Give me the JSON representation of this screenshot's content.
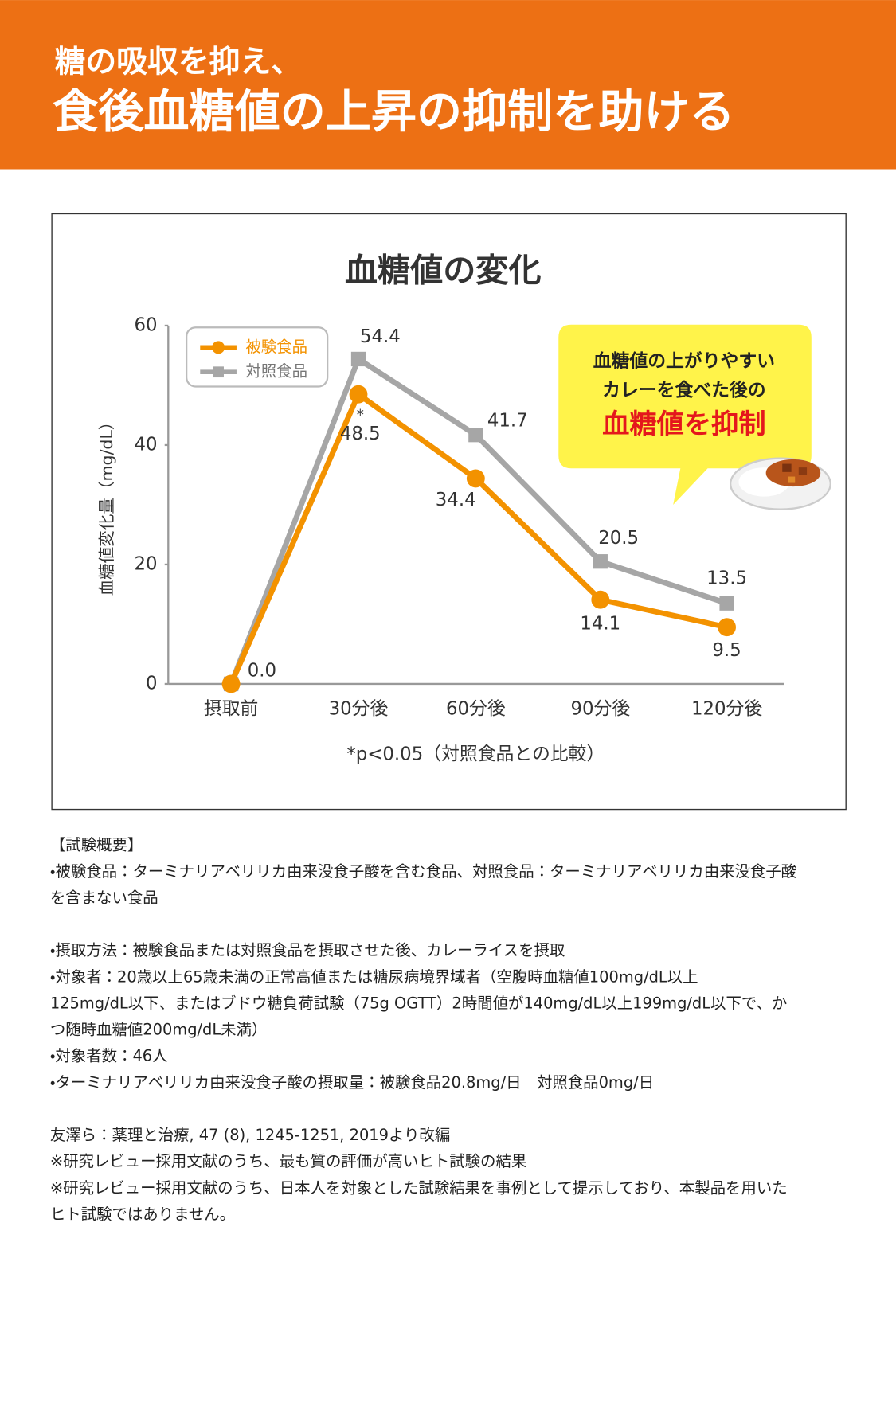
{
  "header": {
    "line1": "糖の吸収を抑え、",
    "line2": "食後血糖値の上昇の抑制を助ける"
  },
  "chart_data": {
    "type": "line",
    "title": "血糖値の変化",
    "y_label": "血糖値変化量（mg/dL）",
    "categories": [
      "摂取前",
      "30分後",
      "60分後",
      "90分後",
      "120分後"
    ],
    "series": [
      {
        "name": "被験食品",
        "color": "#f39200",
        "values": [
          0.0,
          48.5,
          34.4,
          14.1,
          9.5
        ],
        "value_labels": [
          "0.0",
          "48.5",
          "34.4",
          "14.1",
          "9.5"
        ]
      },
      {
        "name": "対照食品",
        "color": "#a6a6a6",
        "values": [
          0,
          54.4,
          41.7,
          20.5,
          13.5
        ],
        "value_labels": [
          null,
          "54.4",
          "41.7",
          "20.5",
          "13.5"
        ]
      }
    ],
    "ylim": [
      0,
      60
    ],
    "yticks": [
      0,
      20,
      40,
      60
    ],
    "grid": false,
    "significance_mark": "*",
    "footnote": "*p<0.05（対照食品との比較）",
    "callout": [
      "血糖値の上がりやすい",
      "カレーを食べた後の",
      "血糖値を抑制"
    ]
  },
  "notes": {
    "heading": "【試験概要】",
    "sections": [
      [
        "・被験食品：ターミナリアベリリカ由来没食子酸を含む食品、対照食品：ターミナリアベリリカ由来没食子酸",
        "を含まない食品"
      ],
      [
        "・摂取方法：被験食品または対照食品を摂取させた後、カレーライスを摂取",
        "・対象者：20歳以上65歳未満の正常高値または糖尿病境界域者（空腹時血糖値100mg/dL以上",
        "125mg/dL以下、またはブドウ糖負荷試験（75g OGTT）2時間値が140mg/dL以上199mg/dL以下で、か",
        "つ随時血糖値200mg/dL未満）",
        "・対象者数：46人",
        "・ターミナリアベリリカ由来没食子酸の摂取量：被験食品20.8mg/日　対照食品0mg/日"
      ],
      [
        "友澤ら：薬理と治療, 47 (8), 1245-1251, 2019より改編",
        "※研究レビュー採用文献のうち、最も質の評価が高いヒト試験の結果",
        "※研究レビュー採用文献のうち、日本人を対象とした試験結果を事例として提示しており、本製品を用いた",
        "ヒト試験ではありません。"
      ]
    ]
  }
}
